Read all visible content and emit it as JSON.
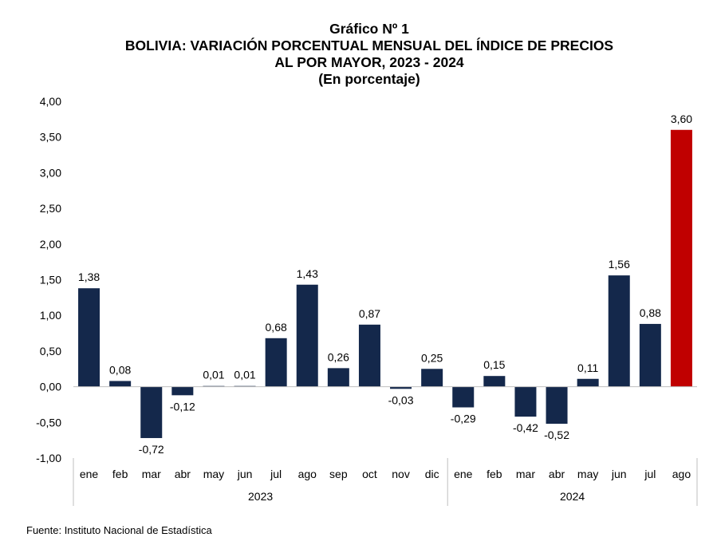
{
  "titles": {
    "line1": "Gráfico Nº 1",
    "line2": "BOLIVIA: VARIACIÓN PORCENTUAL MENSUAL DEL ÍNDICE DE PRECIOS",
    "line3": "AL POR MAYOR, 2023 - 2024",
    "line4": "(En porcentaje)"
  },
  "source": "Fuente: Instituto Nacional de Estadística",
  "chart_data": {
    "type": "bar",
    "title": "BOLIVIA: VARIACIÓN PORCENTUAL MENSUAL DEL ÍNDICE DE PRECIOS AL POR MAYOR, 2023 - 2024",
    "subtitle": "(En porcentaje)",
    "ylim": [
      -1.0,
      4.0
    ],
    "yticks": [
      4.0,
      3.5,
      3.0,
      2.5,
      2.0,
      1.5,
      1.0,
      0.5,
      0.0,
      -0.5,
      -1.0
    ],
    "ytick_labels": [
      "4,00",
      "3,50",
      "3,00",
      "2,50",
      "2,00",
      "1,50",
      "1,00",
      "0,50",
      "0,00",
      "-0,50",
      "-1,00"
    ],
    "groups": [
      {
        "year": "2023",
        "start": 0,
        "end": 11
      },
      {
        "year": "2024",
        "start": 12,
        "end": 19
      }
    ],
    "categories": [
      "ene",
      "feb",
      "mar",
      "abr",
      "may",
      "jun",
      "jul",
      "ago",
      "sep",
      "oct",
      "nov",
      "dic",
      "ene",
      "feb",
      "mar",
      "abr",
      "may",
      "jun",
      "jul",
      "ago"
    ],
    "values": [
      1.38,
      0.08,
      -0.72,
      -0.12,
      0.01,
      0.01,
      0.68,
      1.43,
      0.26,
      0.87,
      -0.03,
      0.25,
      -0.29,
      0.15,
      -0.42,
      -0.52,
      0.11,
      1.56,
      0.88,
      3.6
    ],
    "value_labels": [
      "1,38",
      "0,08",
      "-0,72",
      "-0,12",
      "0,01",
      "0,01",
      "0,68",
      "1,43",
      "0,26",
      "0,87",
      "-0,03",
      "0,25",
      "-0,29",
      "0,15",
      "-0,42",
      "-0,52",
      "0,11",
      "1,56",
      "0,88",
      "3,60"
    ],
    "colors": {
      "default": "#14284b",
      "highlight": "#c00000",
      "highlight_index": 19,
      "axis": "#bfbfbf"
    },
    "grid": false
  }
}
